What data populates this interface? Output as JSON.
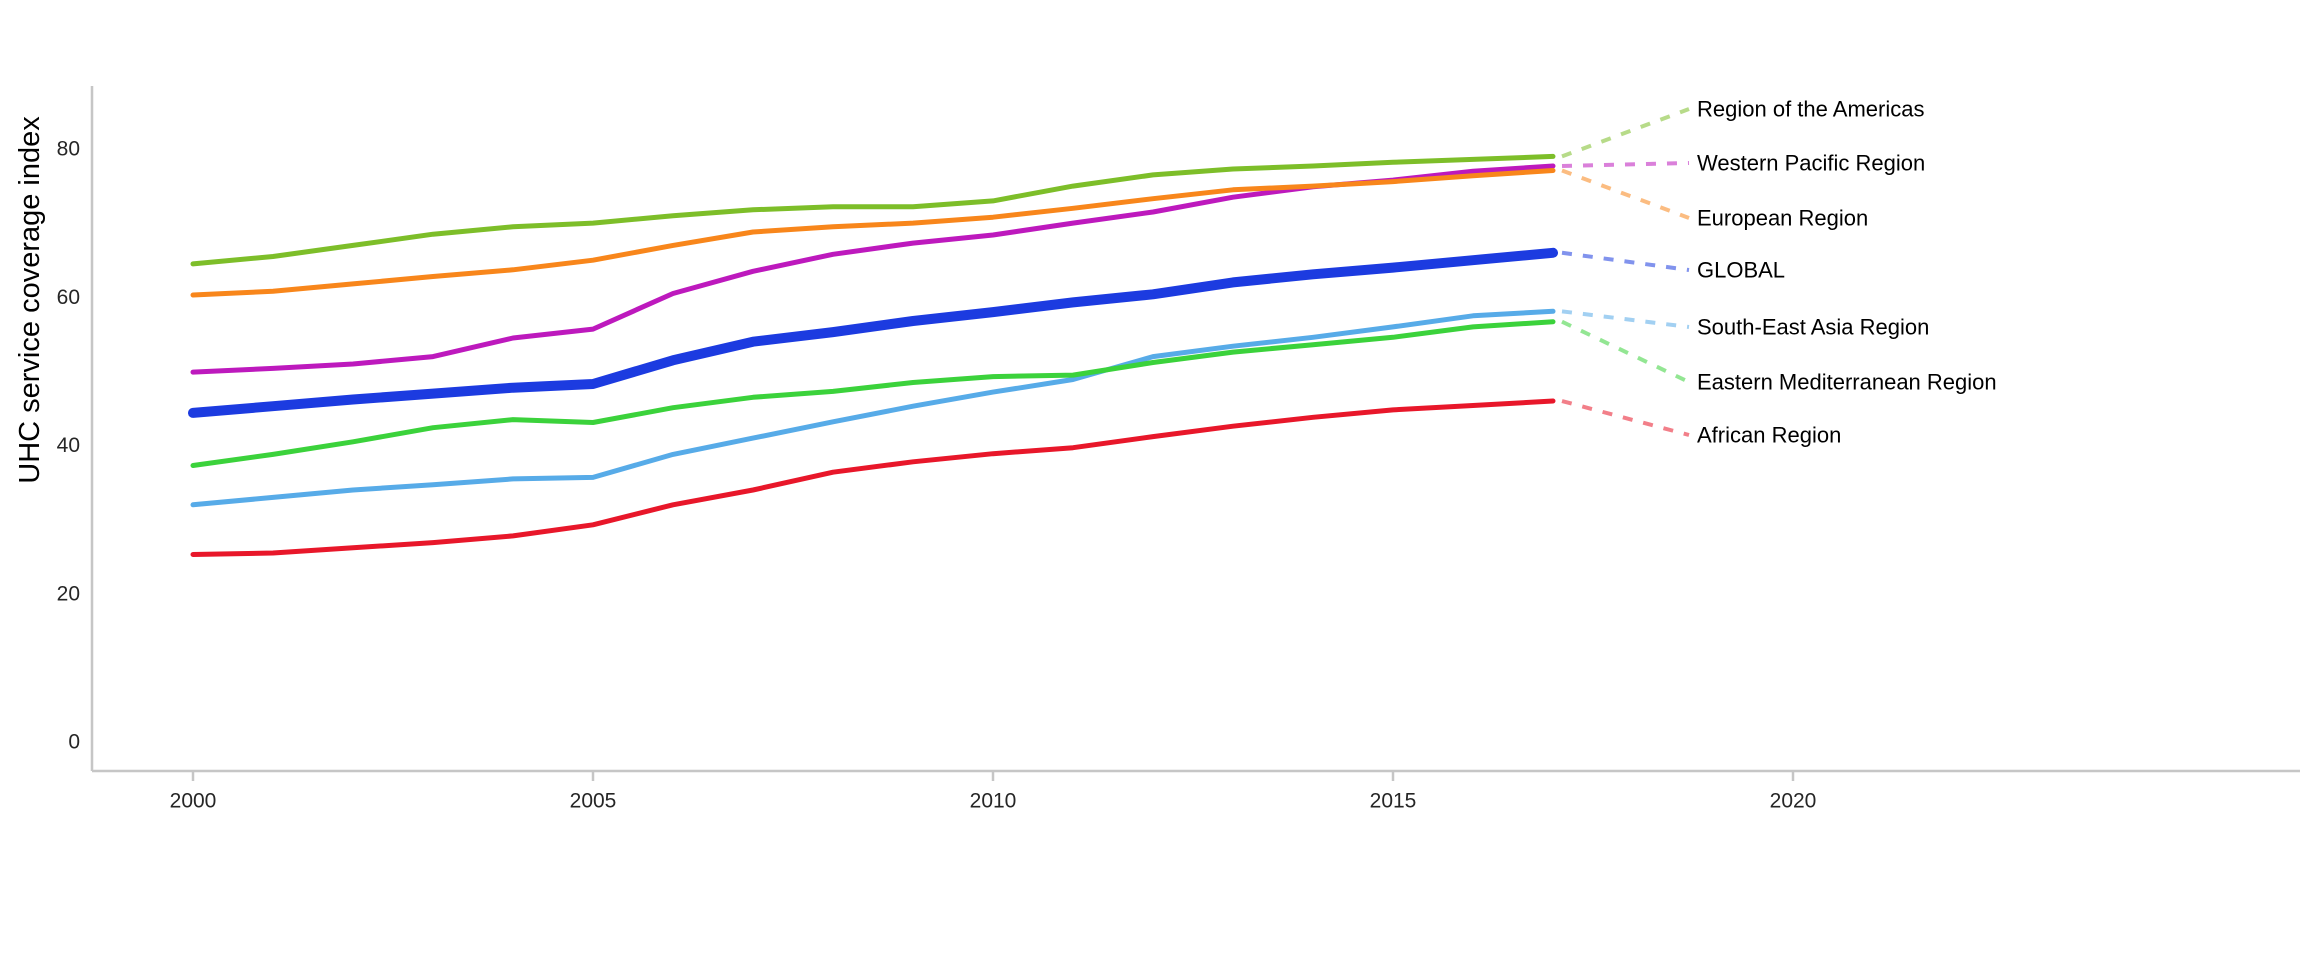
{
  "chart_data": {
    "type": "line",
    "title": "",
    "xlabel": "",
    "ylabel": "UHC service coverage index",
    "x": [
      2000,
      2001,
      2002,
      2003,
      2004,
      2005,
      2006,
      2007,
      2008,
      2009,
      2010,
      2011,
      2012,
      2013,
      2014,
      2015,
      2016,
      2017
    ],
    "x_ticks": [
      2000,
      2005,
      2010,
      2015,
      2020
    ],
    "y_ticks": [
      0,
      20,
      40,
      60,
      80
    ],
    "xlim": [
      1998.7,
      2026.4
    ],
    "ylim": [
      0,
      86
    ],
    "grid": false,
    "legend_position": "right-direct-labels",
    "axis_color": "#c6c6c6",
    "tick_text_color": "#262626",
    "label_text_color": "#000000",
    "series": [
      {
        "name": "Region of the Americas",
        "color": "#7DBE29",
        "width": 5,
        "values": [
          64.5,
          65.5,
          67.0,
          68.5,
          69.5,
          70.0,
          71.0,
          71.8,
          72.2,
          72.2,
          73.0,
          75.0,
          76.5,
          77.3,
          77.7,
          78.2,
          78.6,
          79.0
        ]
      },
      {
        "name": "Western Pacific Region",
        "color": "#BD19BD",
        "width": 5,
        "values": [
          49.9,
          50.4,
          51.0,
          52.0,
          54.5,
          55.7,
          60.5,
          63.5,
          65.8,
          67.3,
          68.4,
          70.0,
          71.5,
          73.5,
          74.9,
          75.8,
          77.0,
          77.7
        ]
      },
      {
        "name": "European Region",
        "color": "#F8861B",
        "width": 5,
        "values": [
          60.3,
          60.8,
          61.8,
          62.8,
          63.7,
          65.0,
          67.0,
          68.8,
          69.5,
          70.0,
          70.8,
          72.0,
          73.3,
          74.5,
          75.0,
          75.6,
          76.4,
          77.1
        ]
      },
      {
        "name": "GLOBAL",
        "color": "#1C3BE0",
        "width": 10,
        "values": [
          44.4,
          45.3,
          46.2,
          47.0,
          47.8,
          48.3,
          51.5,
          54.0,
          55.3,
          56.8,
          58.0,
          59.3,
          60.4,
          62.0,
          63.1,
          64.0,
          65.0,
          66.0
        ]
      },
      {
        "name": "South-East Asia Region",
        "color": "#57ABE8",
        "width": 5,
        "values": [
          32.0,
          33.0,
          34.0,
          34.7,
          35.5,
          35.7,
          38.8,
          41.0,
          43.2,
          45.3,
          47.2,
          48.9,
          52.0,
          53.4,
          54.6,
          56.0,
          57.5,
          58.1
        ]
      },
      {
        "name": "Eastern Mediterranean Region",
        "color": "#3BD23B",
        "width": 5,
        "values": [
          37.3,
          38.8,
          40.5,
          42.4,
          43.5,
          43.1,
          45.1,
          46.5,
          47.3,
          48.5,
          49.3,
          49.5,
          51.2,
          52.6,
          53.6,
          54.6,
          56.0,
          56.7
        ]
      },
      {
        "name": "African Region",
        "color": "#E8172A",
        "width": 5,
        "values": [
          25.3,
          25.5,
          26.2,
          26.9,
          27.8,
          29.3,
          32.0,
          34.0,
          36.4,
          37.8,
          38.9,
          39.7,
          41.2,
          42.6,
          43.8,
          44.8,
          45.4,
          46.0
        ]
      }
    ],
    "right_labels_top_to_bottom": [
      "Region of the Americas",
      "Western Pacific Region",
      "European Region",
      "GLOBAL",
      "South-East Asia Region",
      "Eastern Mediterranean Region",
      "African Region"
    ]
  }
}
